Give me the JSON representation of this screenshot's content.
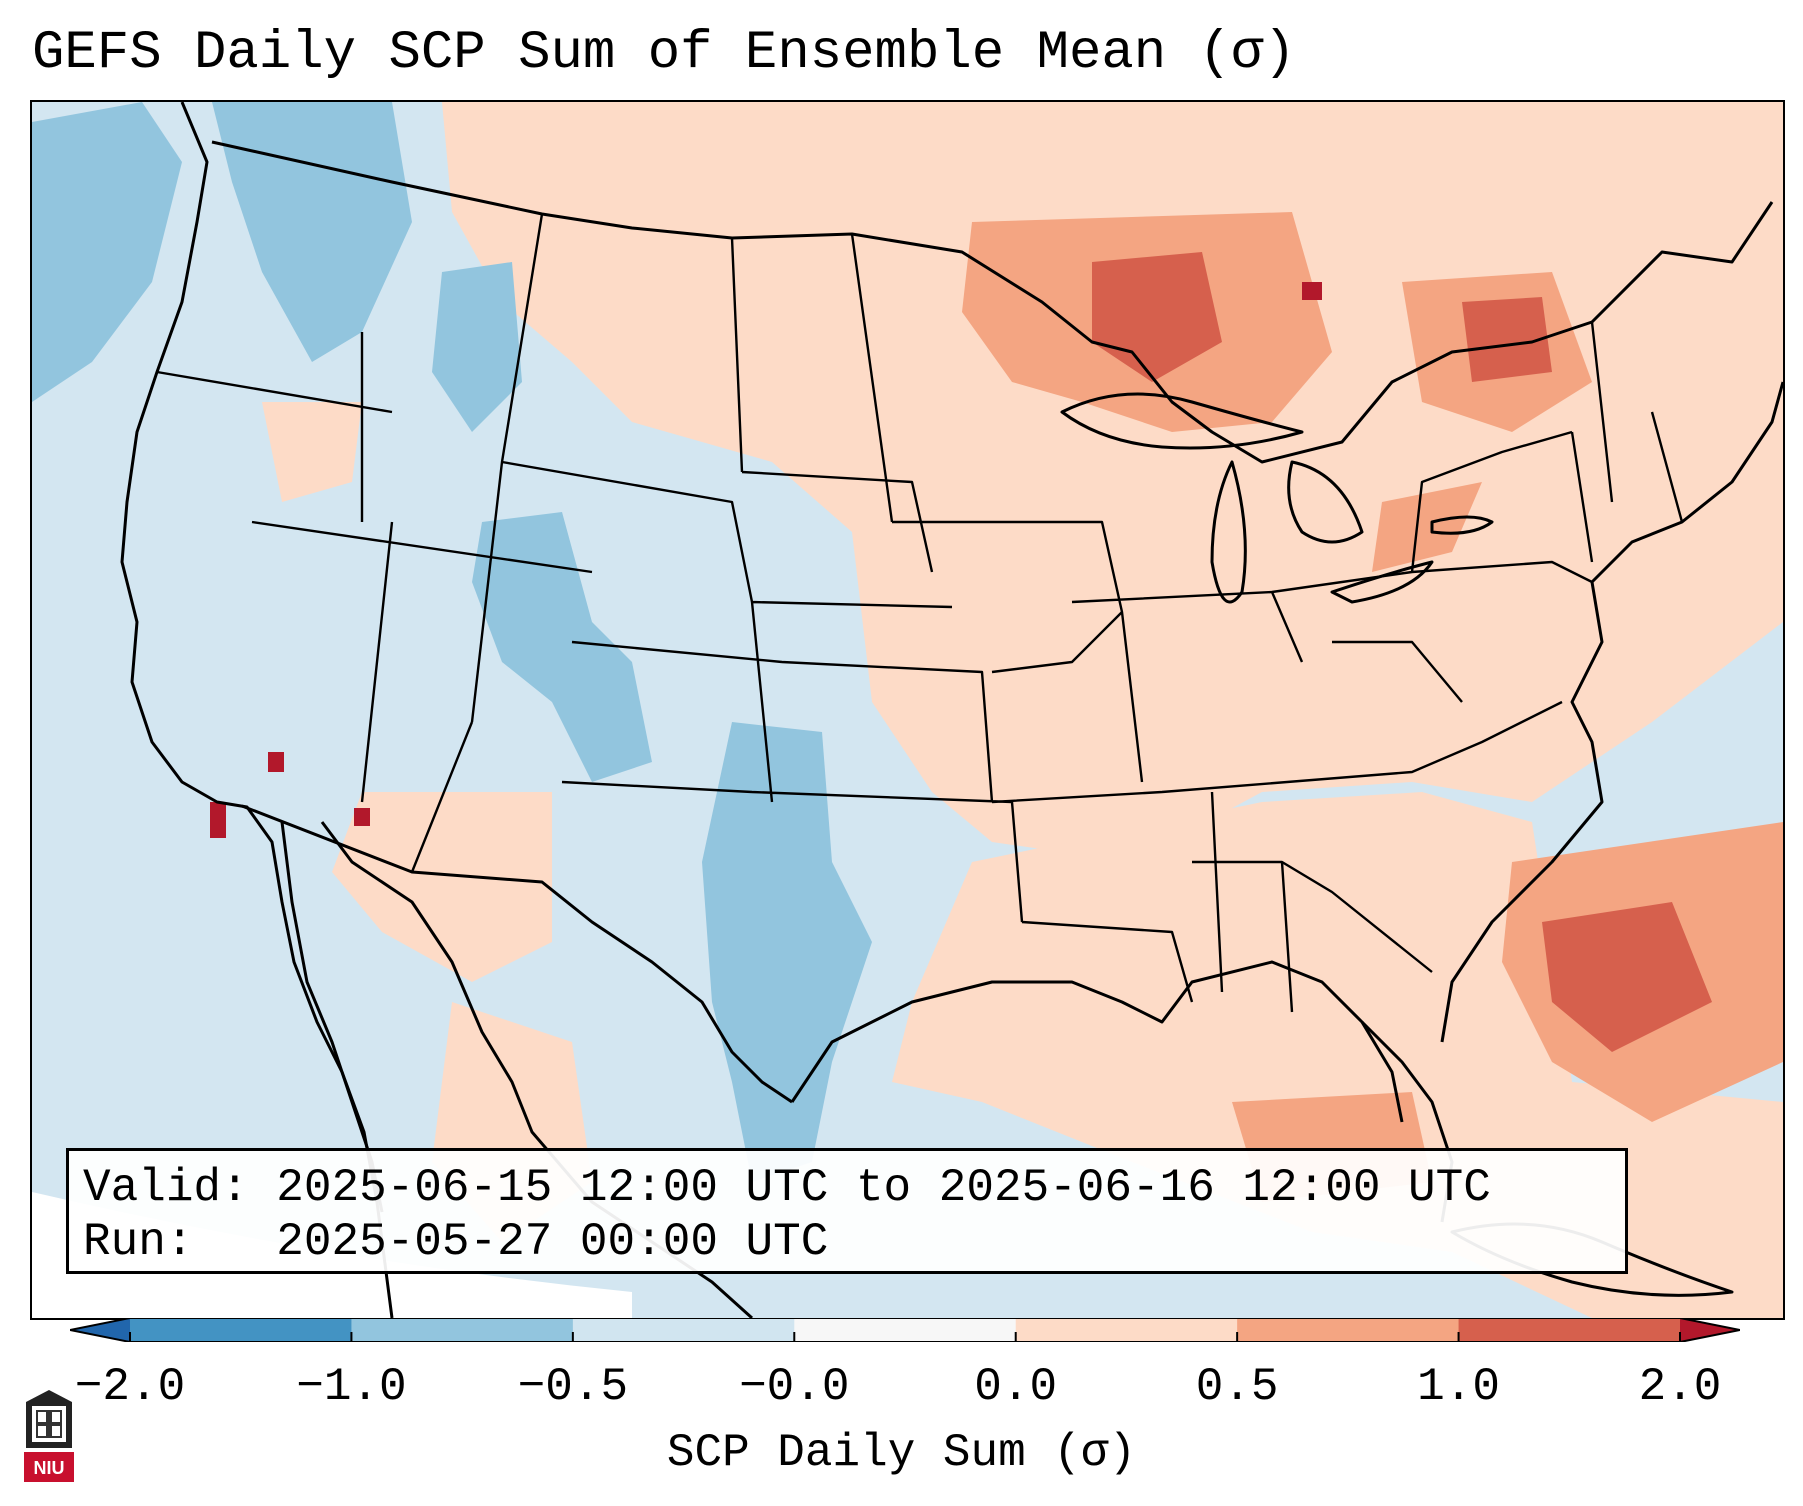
{
  "title": "GEFS Daily SCP Sum of Ensemble Mean (σ)",
  "info": {
    "valid_label": "Valid:",
    "valid_text": "2025-06-15 12:00 UTC to 2025-06-16 12:00 UTC",
    "run_label": "Run:",
    "run_text": "2025-05-27 00:00 UTC"
  },
  "colorbar": {
    "label": "SCP Daily Sum (σ)",
    "ticks": [
      "−2.0",
      "−1.0",
      "−0.5",
      "−0.0",
      "0.0",
      "0.5",
      "1.0",
      "2.0"
    ],
    "colors": [
      "#4393c3",
      "#92c5de",
      "#d1e5f0",
      "#f7f7f7",
      "#fddbc7",
      "#f4a582",
      "#d6604d"
    ],
    "extend_low": "#2166ac",
    "extend_high": "#b2182b"
  },
  "map": {
    "background_color": "#d3e6f1",
    "anomaly_regions": [
      {
        "name": "upper-midwest-canada",
        "level": "positive",
        "color": "#fddbc7"
      },
      {
        "name": "great-lakes-core",
        "level": "strong-positive",
        "color": "#f4a582"
      },
      {
        "name": "quebec-core",
        "level": "strong-positive",
        "color": "#d6604d"
      },
      {
        "name": "southeast-us",
        "level": "positive",
        "color": "#fddbc7"
      },
      {
        "name": "gulf-of-mexico",
        "level": "positive",
        "color": "#f4a582"
      },
      {
        "name": "atlantic-offshore",
        "level": "strong-positive",
        "color": "#d6604d"
      },
      {
        "name": "southwest-arizona",
        "level": "positive",
        "color": "#fddbc7"
      },
      {
        "name": "texas-panhandle",
        "level": "negative",
        "color": "#92c5de"
      },
      {
        "name": "colorado-utah",
        "level": "negative",
        "color": "#92c5de"
      },
      {
        "name": "pacific-northwest",
        "level": "negative",
        "color": "#92c5de"
      }
    ]
  },
  "logo": {
    "text": "NIU"
  }
}
